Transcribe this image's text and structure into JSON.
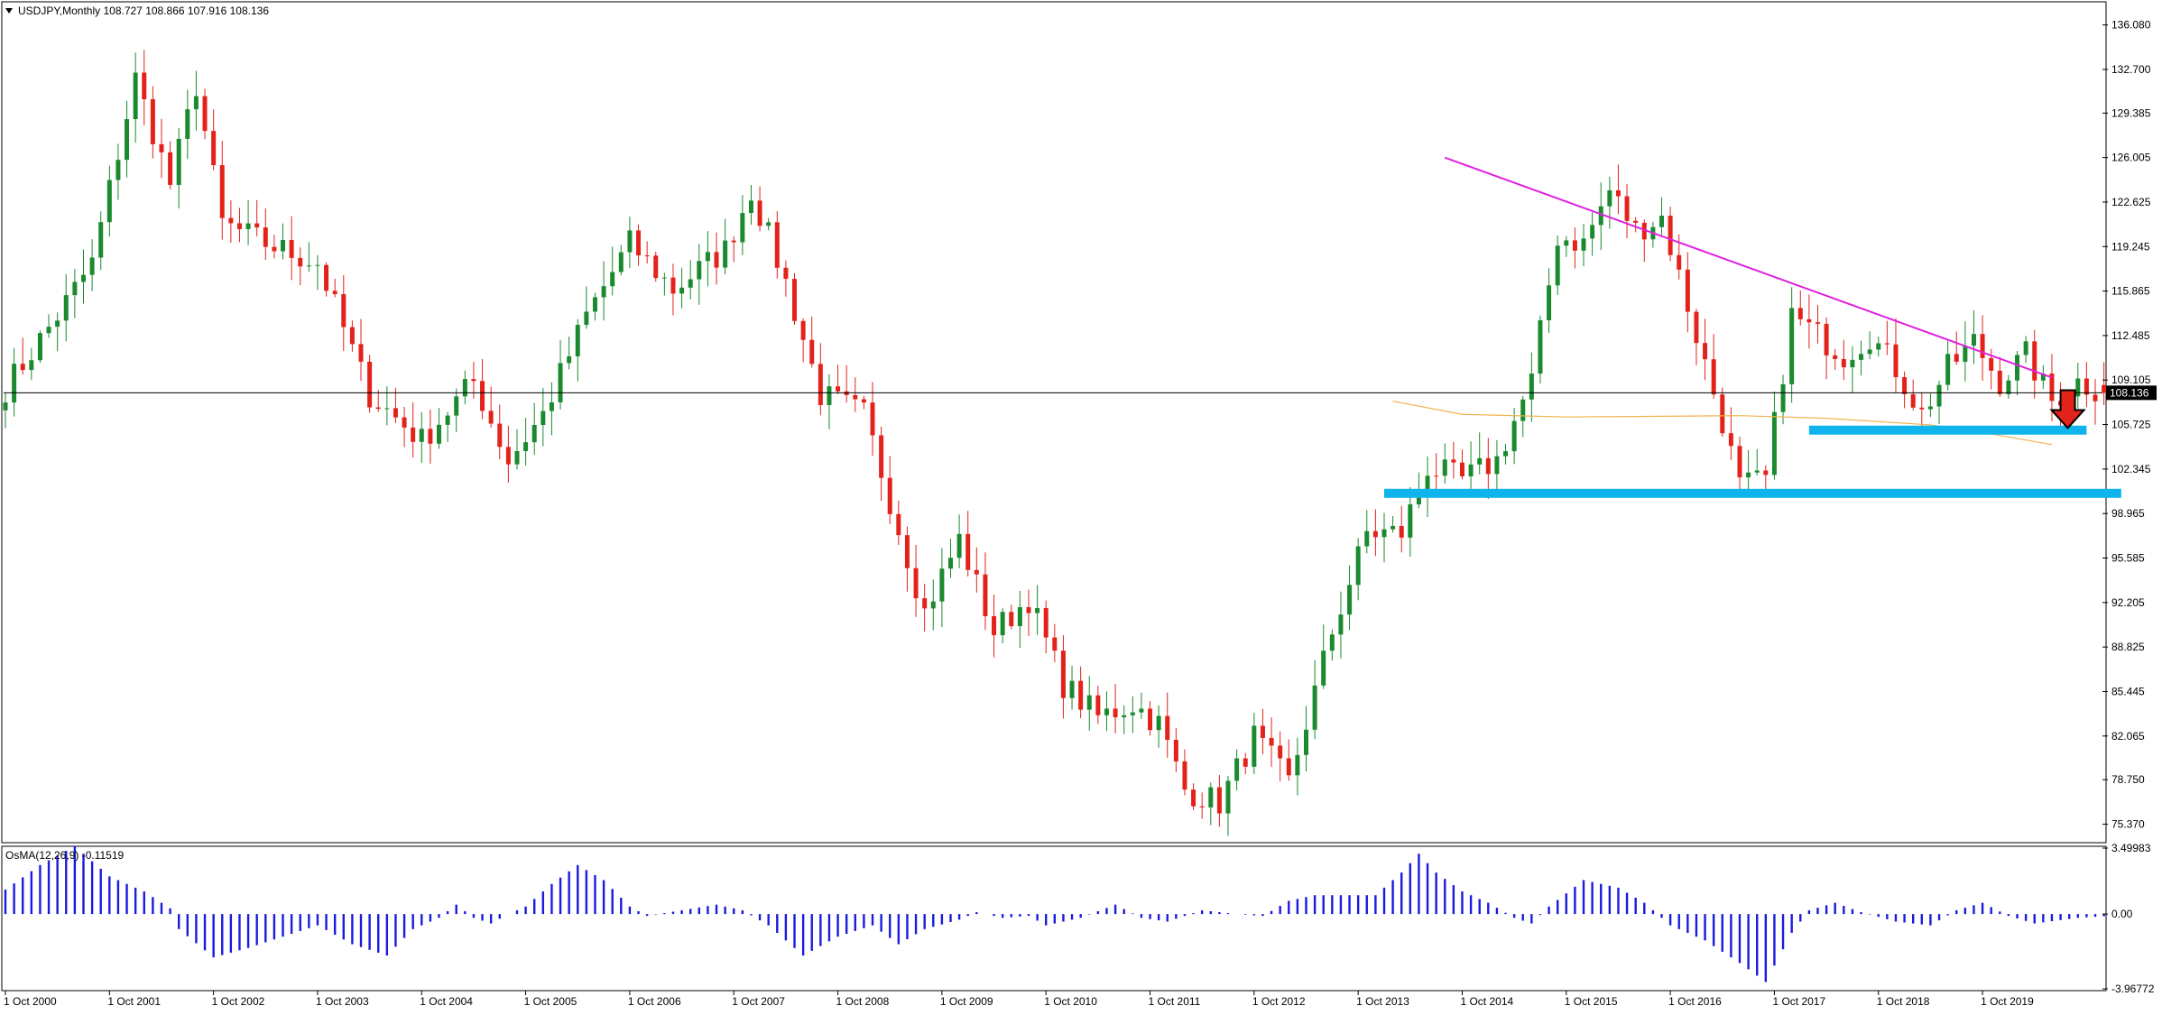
{
  "header": {
    "symbol_line": "USDJPY,Monthly  108.727 108.866 107.916 108.136",
    "indicator_line": "OsMA(12,26,9) -0.11519"
  },
  "colors": {
    "background": "#ffffff",
    "bull": "#1a8a2e",
    "bear": "#e32219",
    "trendline": "#e020e0",
    "support": "#10b4ec",
    "ma": "#f0b24a",
    "osma": "#1a1ae0",
    "price_line": "#000000"
  },
  "chart_data": [
    {
      "type": "candlestick",
      "symbol": "USDJPY",
      "timeframe": "Monthly",
      "ohlc_label": {
        "open": 108.727,
        "high": 108.866,
        "low": 107.916,
        "close": 108.136
      },
      "y_ticks": [
        136.08,
        132.7,
        129.385,
        126.005,
        122.625,
        119.245,
        115.865,
        112.485,
        109.105,
        105.725,
        102.345,
        98.965,
        95.585,
        92.205,
        88.825,
        85.445,
        82.065,
        78.75,
        75.37
      ],
      "y_tick_labels": [
        "136.080",
        "132.700",
        "129.385",
        "126.005",
        "122.625",
        "119.245",
        "115.865",
        "112.485",
        "109.105",
        "105.725",
        "102.345",
        "98.965",
        "95.585",
        "92.205",
        "88.825",
        "85.445",
        "82.065",
        "78.750",
        "75.370"
      ],
      "current_price_label": "108.136",
      "ylim": [
        74.1,
        137.7
      ],
      "x_labels": [
        "1 Oct 2000",
        "1 Oct 2001",
        "1 Oct 2002",
        "1 Oct 2003",
        "1 Oct 2004",
        "1 Oct 2005",
        "1 Oct 2006",
        "1 Oct 2007",
        "1 Oct 2008",
        "1 Oct 2009",
        "1 Oct 2010",
        "1 Oct 2011",
        "1 Oct 2012",
        "1 Oct 2013",
        "1 Oct 2014",
        "1 Oct 2015",
        "1 Oct 2016",
        "1 Oct 2017",
        "1 Oct 2018",
        "1 Oct 2019"
      ],
      "waypoints": [
        {
          "i": 0,
          "p": 108.5
        },
        {
          "i": 6,
          "p": 114.0
        },
        {
          "i": 10,
          "p": 118.0
        },
        {
          "i": 15,
          "p": 132.0
        },
        {
          "i": 19,
          "p": 124.0
        },
        {
          "i": 22,
          "p": 131.5
        },
        {
          "i": 25,
          "p": 121.0
        },
        {
          "i": 30,
          "p": 119.5
        },
        {
          "i": 36,
          "p": 118.0
        },
        {
          "i": 42,
          "p": 108.0
        },
        {
          "i": 48,
          "p": 104.5
        },
        {
          "i": 54,
          "p": 109.0
        },
        {
          "i": 58,
          "p": 103.0
        },
        {
          "i": 62,
          "p": 106.5
        },
        {
          "i": 67,
          "p": 114.0
        },
        {
          "i": 72,
          "p": 119.5
        },
        {
          "i": 77,
          "p": 116.0
        },
        {
          "i": 83,
          "p": 119.0
        },
        {
          "i": 86,
          "p": 123.5
        },
        {
          "i": 90,
          "p": 116.5
        },
        {
          "i": 94,
          "p": 108.0
        },
        {
          "i": 99,
          "p": 106.5
        },
        {
          "i": 102,
          "p": 100.0
        },
        {
          "i": 106,
          "p": 91.5
        },
        {
          "i": 110,
          "p": 97.0
        },
        {
          "i": 114,
          "p": 90.0
        },
        {
          "i": 118,
          "p": 92.5
        },
        {
          "i": 122,
          "p": 86.0
        },
        {
          "i": 126,
          "p": 83.5
        },
        {
          "i": 130,
          "p": 84.5
        },
        {
          "i": 133,
          "p": 83.0
        },
        {
          "i": 136,
          "p": 78.0
        },
        {
          "i": 140,
          "p": 77.0
        },
        {
          "i": 144,
          "p": 82.0
        },
        {
          "i": 148,
          "p": 78.5
        },
        {
          "i": 153,
          "p": 90.0
        },
        {
          "i": 157,
          "p": 97.5
        },
        {
          "i": 161,
          "p": 97.5
        },
        {
          "i": 164,
          "p": 102.5
        },
        {
          "i": 168,
          "p": 101.5
        },
        {
          "i": 172,
          "p": 103.0
        },
        {
          "i": 176,
          "p": 109.0
        },
        {
          "i": 179,
          "p": 120.0
        },
        {
          "i": 182,
          "p": 119.5
        },
        {
          "i": 185,
          "p": 123.5
        },
        {
          "i": 188,
          "p": 120.5
        },
        {
          "i": 191,
          "p": 121.5
        },
        {
          "i": 195,
          "p": 112.5
        },
        {
          "i": 198,
          "p": 106.0
        },
        {
          "i": 200,
          "p": 101.0
        },
        {
          "i": 203,
          "p": 101.5
        },
        {
          "i": 206,
          "p": 114.0
        },
        {
          "i": 209,
          "p": 112.5
        },
        {
          "i": 212,
          "p": 111.0
        },
        {
          "i": 215,
          "p": 112.5
        },
        {
          "i": 218,
          "p": 110.0
        },
        {
          "i": 221,
          "p": 106.5
        },
        {
          "i": 224,
          "p": 110.0
        },
        {
          "i": 227,
          "p": 112.0
        },
        {
          "i": 230,
          "p": 109.0
        },
        {
          "i": 233,
          "p": 111.0
        },
        {
          "i": 236,
          "p": 107.5
        },
        {
          "i": 239,
          "p": 109.0
        },
        {
          "i": 242,
          "p": 108.136
        }
      ],
      "overlays": {
        "trendline": [
          [
            166,
            126.0
          ],
          [
            236,
            109.3
          ]
        ],
        "support_zones": [
          {
            "from_index": 159,
            "to_index": 244,
            "price": 100.5
          },
          {
            "from_index": 208,
            "to_index": 240,
            "price": 105.3
          }
        ],
        "moving_average": [
          [
            160,
            107.5
          ],
          [
            168,
            106.5
          ],
          [
            180,
            106.3
          ],
          [
            200,
            106.4
          ],
          [
            210,
            106.2
          ],
          [
            222,
            105.7
          ],
          [
            230,
            104.9
          ],
          [
            236,
            104.2
          ]
        ],
        "down_arrow_index": 237
      }
    },
    {
      "type": "bar",
      "name": "OsMA(12,26,9)",
      "last_value": -0.11519,
      "y_ticks": [
        3.49983,
        0.0,
        -3.96772
      ],
      "y_tick_labels": [
        "3.49983",
        "0.00",
        "-3.96772"
      ],
      "ylim": [
        -3.96772,
        3.49983
      ],
      "waypoints": [
        {
          "i": 0,
          "v": 1.3
        },
        {
          "i": 4,
          "v": 2.6
        },
        {
          "i": 8,
          "v": 3.6
        },
        {
          "i": 12,
          "v": 2.0
        },
        {
          "i": 16,
          "v": 1.2
        },
        {
          "i": 19,
          "v": 0.3
        },
        {
          "i": 20,
          "v": -0.8
        },
        {
          "i": 24,
          "v": -2.3
        },
        {
          "i": 28,
          "v": -1.8
        },
        {
          "i": 32,
          "v": -1.2
        },
        {
          "i": 36,
          "v": -0.6
        },
        {
          "i": 40,
          "v": -1.6
        },
        {
          "i": 44,
          "v": -2.2
        },
        {
          "i": 47,
          "v": -0.8
        },
        {
          "i": 50,
          "v": -0.2
        },
        {
          "i": 52,
          "v": 0.5
        },
        {
          "i": 54,
          "v": -0.2
        },
        {
          "i": 56,
          "v": -0.5
        },
        {
          "i": 58,
          "v": 0.0
        },
        {
          "i": 60,
          "v": 0.4
        },
        {
          "i": 63,
          "v": 1.6
        },
        {
          "i": 66,
          "v": 2.6
        },
        {
          "i": 69,
          "v": 1.8
        },
        {
          "i": 72,
          "v": 0.4
        },
        {
          "i": 74,
          "v": -0.1
        },
        {
          "i": 78,
          "v": 0.2
        },
        {
          "i": 82,
          "v": 0.5
        },
        {
          "i": 85,
          "v": 0.2
        },
        {
          "i": 88,
          "v": -0.6
        },
        {
          "i": 92,
          "v": -2.2
        },
        {
          "i": 96,
          "v": -1.2
        },
        {
          "i": 100,
          "v": -0.6
        },
        {
          "i": 103,
          "v": -1.6
        },
        {
          "i": 106,
          "v": -0.8
        },
        {
          "i": 110,
          "v": -0.3
        },
        {
          "i": 112,
          "v": 0.1
        },
        {
          "i": 115,
          "v": -0.2
        },
        {
          "i": 118,
          "v": -0.1
        },
        {
          "i": 120,
          "v": -0.6
        },
        {
          "i": 124,
          "v": -0.2
        },
        {
          "i": 128,
          "v": 0.5
        },
        {
          "i": 131,
          "v": -0.2
        },
        {
          "i": 134,
          "v": -0.4
        },
        {
          "i": 138,
          "v": 0.2
        },
        {
          "i": 142,
          "v": 0.0
        },
        {
          "i": 145,
          "v": -0.1
        },
        {
          "i": 148,
          "v": 0.7
        },
        {
          "i": 151,
          "v": 1.0
        },
        {
          "i": 155,
          "v": 1.0
        },
        {
          "i": 158,
          "v": 1.0
        },
        {
          "i": 161,
          "v": 2.2
        },
        {
          "i": 163,
          "v": 3.2
        },
        {
          "i": 165,
          "v": 2.2
        },
        {
          "i": 168,
          "v": 1.2
        },
        {
          "i": 171,
          "v": 0.6
        },
        {
          "i": 174,
          "v": -0.2
        },
        {
          "i": 176,
          "v": -0.5
        },
        {
          "i": 178,
          "v": 0.4
        },
        {
          "i": 182,
          "v": 1.8
        },
        {
          "i": 186,
          "v": 1.4
        },
        {
          "i": 189,
          "v": 0.6
        },
        {
          "i": 192,
          "v": -0.6
        },
        {
          "i": 196,
          "v": -1.4
        },
        {
          "i": 200,
          "v": -2.6
        },
        {
          "i": 203,
          "v": -3.6
        },
        {
          "i": 206,
          "v": -1.0
        },
        {
          "i": 208,
          "v": 0.2
        },
        {
          "i": 211,
          "v": 0.6
        },
        {
          "i": 214,
          "v": 0.1
        },
        {
          "i": 218,
          "v": -0.4
        },
        {
          "i": 222,
          "v": -0.6
        },
        {
          "i": 225,
          "v": 0.2
        },
        {
          "i": 228,
          "v": 0.6
        },
        {
          "i": 231,
          "v": -0.1
        },
        {
          "i": 234,
          "v": -0.5
        },
        {
          "i": 239,
          "v": -0.2
        },
        {
          "i": 242,
          "v": -0.11519
        }
      ]
    }
  ]
}
